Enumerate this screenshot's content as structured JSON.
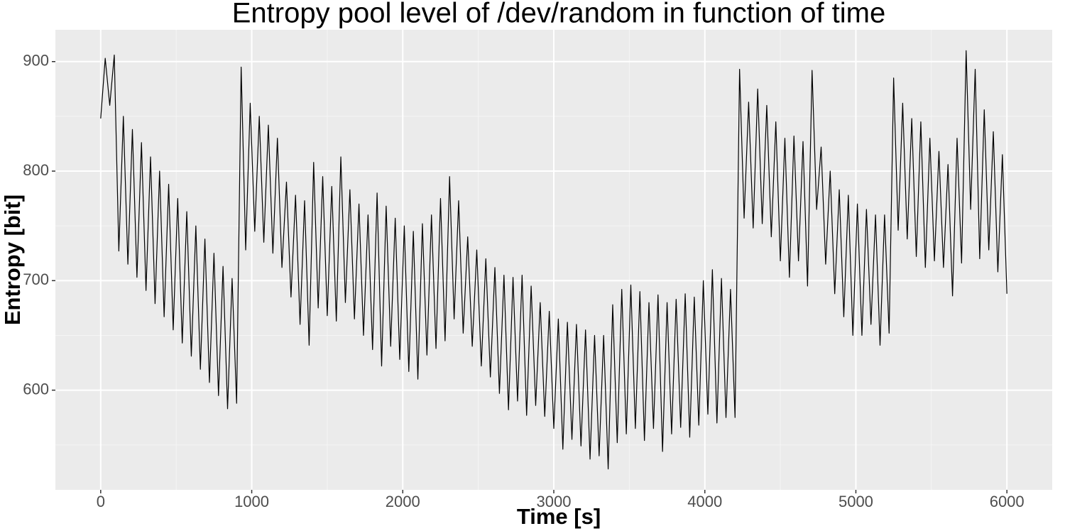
{
  "chart_data": {
    "type": "line",
    "title": "Entropy pool level of /dev/random in function of time",
    "x_label": "Time [s]",
    "y_label": "Entropy [bit]",
    "x": [
      0,
      30,
      60,
      90,
      120,
      150,
      180,
      210,
      240,
      270,
      300,
      330,
      360,
      390,
      420,
      450,
      480,
      510,
      540,
      570,
      600,
      630,
      660,
      690,
      720,
      750,
      780,
      810,
      840,
      870,
      900,
      930,
      960,
      990,
      1020,
      1050,
      1080,
      1110,
      1140,
      1170,
      1200,
      1230,
      1260,
      1290,
      1320,
      1350,
      1380,
      1410,
      1440,
      1470,
      1500,
      1530,
      1560,
      1590,
      1620,
      1650,
      1680,
      1710,
      1740,
      1770,
      1800,
      1830,
      1860,
      1890,
      1920,
      1950,
      1980,
      2010,
      2040,
      2070,
      2100,
      2130,
      2160,
      2190,
      2220,
      2250,
      2280,
      2310,
      2340,
      2370,
      2400,
      2430,
      2460,
      2490,
      2520,
      2550,
      2580,
      2610,
      2640,
      2670,
      2700,
      2730,
      2760,
      2790,
      2820,
      2850,
      2880,
      2910,
      2940,
      2970,
      3000,
      3030,
      3060,
      3090,
      3120,
      3150,
      3180,
      3210,
      3240,
      3270,
      3300,
      3330,
      3360,
      3390,
      3420,
      3450,
      3480,
      3510,
      3540,
      3570,
      3600,
      3630,
      3660,
      3690,
      3720,
      3750,
      3780,
      3810,
      3840,
      3870,
      3900,
      3930,
      3960,
      3990,
      4020,
      4050,
      4080,
      4110,
      4140,
      4170,
      4200,
      4230,
      4260,
      4290,
      4320,
      4350,
      4380,
      4410,
      4440,
      4470,
      4500,
      4530,
      4560,
      4590,
      4620,
      4650,
      4680,
      4710,
      4740,
      4770,
      4800,
      4830,
      4860,
      4890,
      4920,
      4950,
      4980,
      5010,
      5040,
      5070,
      5100,
      5130,
      5160,
      5190,
      5220,
      5250,
      5280,
      5310,
      5340,
      5370,
      5400,
      5430,
      5460,
      5490,
      5520,
      5550,
      5580,
      5610,
      5640,
      5670,
      5700,
      5730,
      5760,
      5790,
      5820,
      5850,
      5880,
      5910,
      5940,
      5970,
      6000
    ],
    "values": [
      848,
      903,
      860,
      906,
      727,
      850,
      715,
      838,
      703,
      826,
      691,
      813,
      679,
      800,
      667,
      788,
      655,
      775,
      643,
      763,
      631,
      750,
      619,
      738,
      607,
      725,
      595,
      713,
      583,
      702,
      588,
      895,
      728,
      862,
      745,
      850,
      735,
      842,
      725,
      830,
      712,
      790,
      685,
      778,
      660,
      773,
      641,
      808,
      675,
      795,
      668,
      786,
      663,
      813,
      680,
      783,
      665,
      770,
      650,
      760,
      637,
      780,
      622,
      768,
      640,
      757,
      628,
      750,
      617,
      745,
      610,
      752,
      632,
      760,
      638,
      775,
      645,
      795,
      665,
      773,
      652,
      740,
      640,
      728,
      622,
      720,
      612,
      712,
      597,
      705,
      582,
      703,
      590,
      705,
      577,
      695,
      586,
      680,
      576,
      672,
      565,
      665,
      546,
      662,
      555,
      660,
      549,
      655,
      537,
      650,
      540,
      650,
      528,
      678,
      552,
      692,
      560,
      696,
      565,
      690,
      554,
      680,
      565,
      687,
      544,
      680,
      560,
      683,
      566,
      688,
      557,
      685,
      568,
      700,
      578,
      710,
      570,
      702,
      575,
      692,
      575,
      893,
      757,
      863,
      748,
      875,
      752,
      860,
      740,
      845,
      718,
      830,
      703,
      832,
      718,
      827,
      695,
      892,
      765,
      822,
      715,
      800,
      688,
      783,
      667,
      778,
      650,
      770,
      650,
      765,
      660,
      760,
      641,
      760,
      652,
      885,
      746,
      862,
      738,
      848,
      722,
      845,
      712,
      830,
      718,
      818,
      712,
      806,
      686,
      830,
      716,
      910,
      765,
      893,
      720,
      856,
      728,
      836,
      708,
      815,
      688
    ],
    "color": "#000000",
    "xlim": [
      -300,
      6300
    ],
    "xticks": [
      0,
      1000,
      2000,
      3000,
      4000,
      5000,
      6000
    ],
    "ylim": [
      509,
      929
    ],
    "yticks": [
      600,
      700,
      800,
      900
    ],
    "grid": true
  }
}
